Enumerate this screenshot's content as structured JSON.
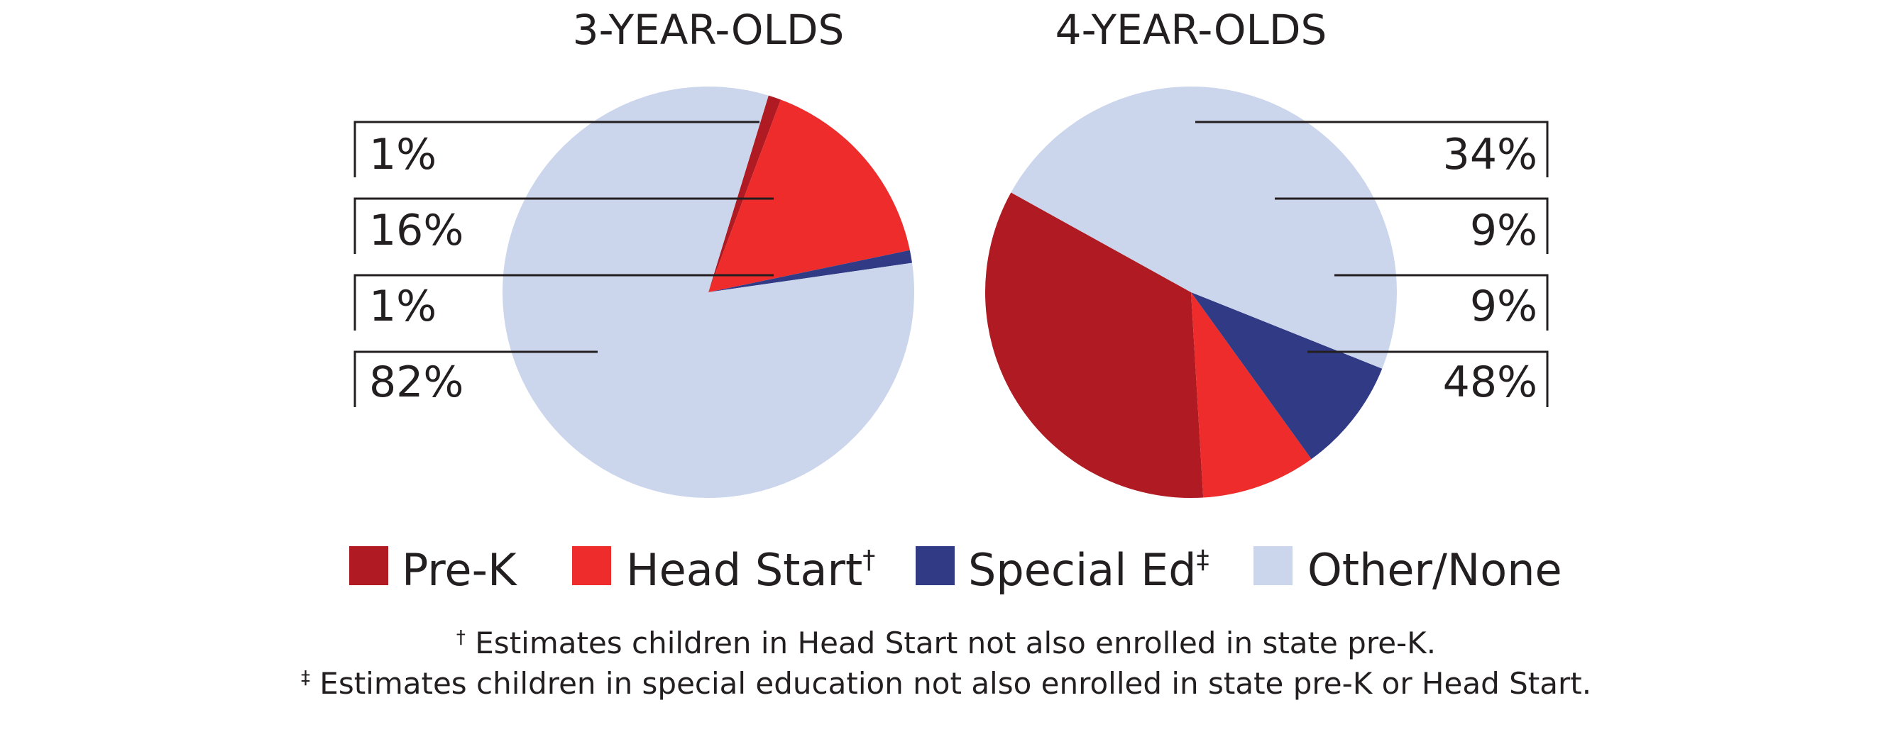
{
  "chart_data": [
    {
      "type": "pie",
      "title": "3-YEAR-OLDS",
      "labels": [
        "Pre-K",
        "Head Start",
        "Special Ed",
        "Other/None"
      ],
      "values": [
        1,
        16,
        1,
        82
      ],
      "value_labels": [
        "1%",
        "16%",
        "1%",
        "82%"
      ]
    },
    {
      "type": "pie",
      "title": "4-YEAR-OLDS",
      "labels": [
        "Pre-K",
        "Head Start",
        "Special Ed",
        "Other/None"
      ],
      "values": [
        34,
        9,
        9,
        48
      ],
      "value_labels": [
        "34%",
        "9%",
        "9%",
        "48%"
      ]
    }
  ],
  "legend": {
    "items": [
      {
        "label": "Pre-K",
        "mark": "",
        "color": "#b01a22"
      },
      {
        "label": "Head Start",
        "mark": "†",
        "color": "#ee2c2c"
      },
      {
        "label": "Special Ed",
        "mark": "‡",
        "color": "#313a85"
      },
      {
        "label": "Other/None",
        "mark": "",
        "color": "#cbd6ec"
      }
    ]
  },
  "footnotes": [
    {
      "mark": "†",
      "text": " Estimates children in Head Start not also enrolled in state pre-K."
    },
    {
      "mark": "‡",
      "text": " Estimates children in special education not also enrolled in state pre-K or Head Start."
    }
  ]
}
